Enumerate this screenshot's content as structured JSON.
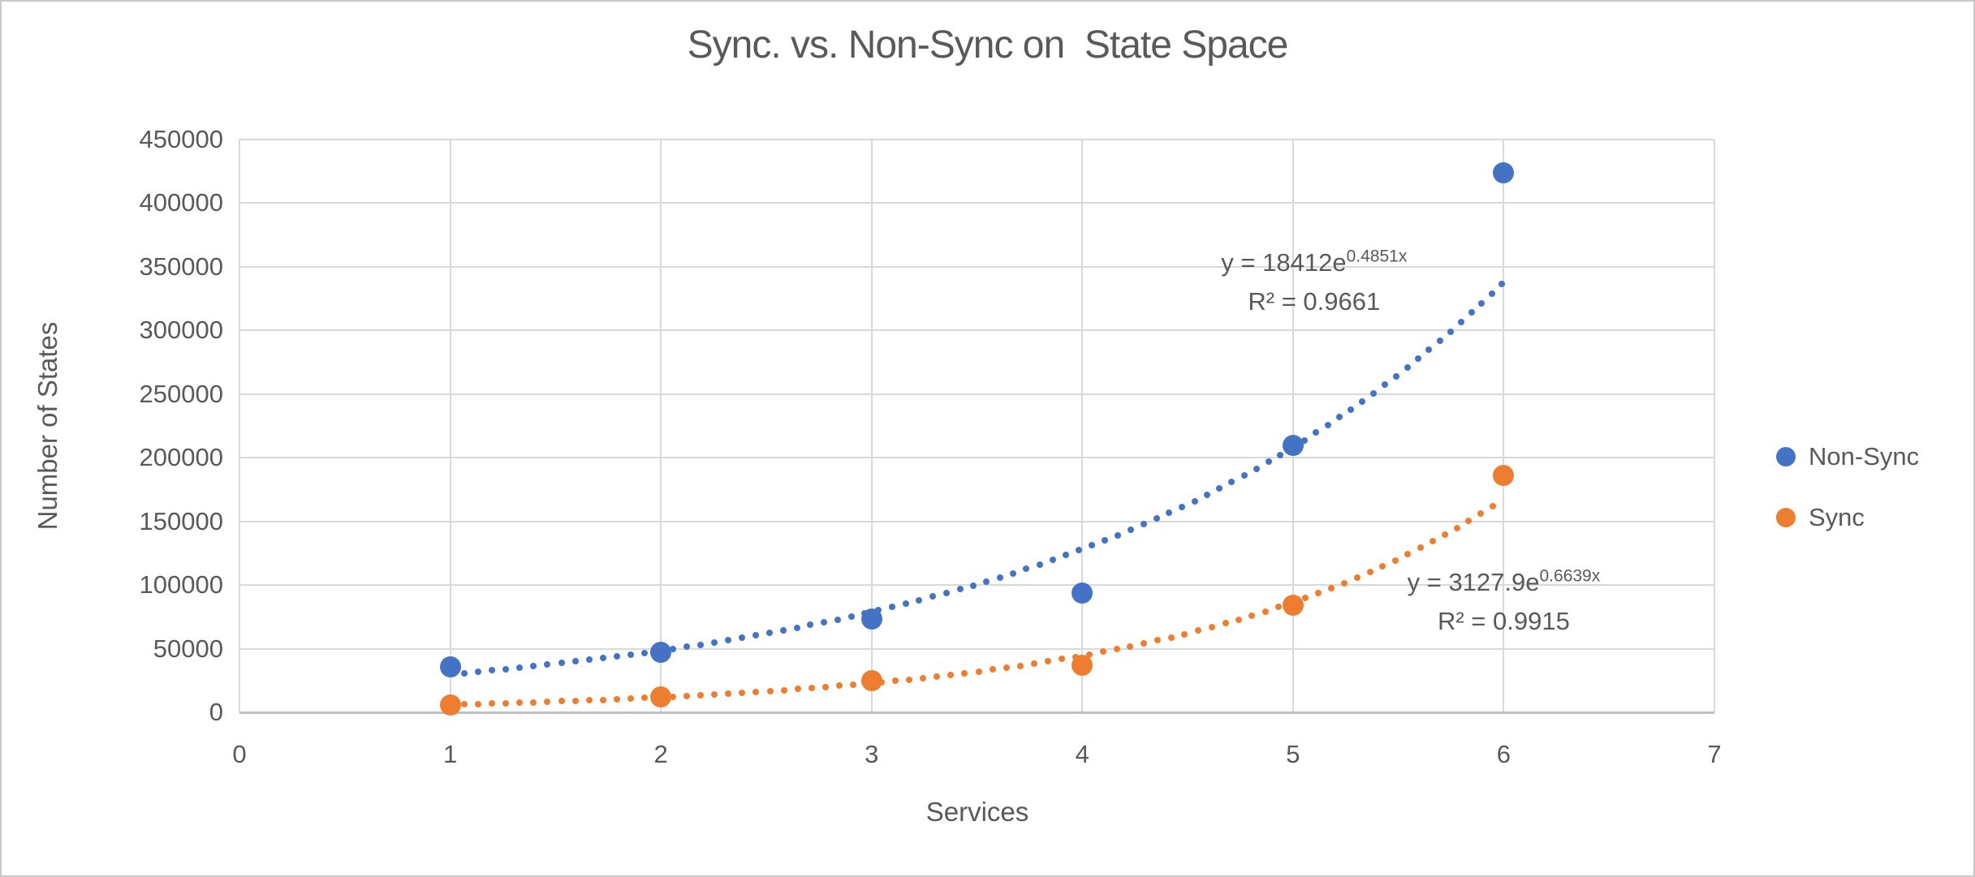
{
  "window": {
    "background": "#ffffff",
    "border_color": "#c9c9c9"
  },
  "chart_data": {
    "type": "scatter",
    "title": "Sync. vs. Non-Sync on  State Space",
    "xlabel": "Services",
    "ylabel": "Number of States",
    "xlim": [
      0,
      7
    ],
    "ylim": [
      0,
      450000
    ],
    "x_ticks": [
      0,
      1,
      2,
      3,
      4,
      5,
      6,
      7
    ],
    "y_ticks": [
      0,
      50000,
      100000,
      150000,
      200000,
      250000,
      300000,
      350000,
      400000,
      450000
    ],
    "grid": true,
    "legend_position": "right",
    "colors": {
      "grid": "#d9d9d9",
      "axis_line": "#bfbfbf",
      "text": "#595959"
    },
    "series": [
      {
        "name": "Non-Sync",
        "color": "#4472c4",
        "x": [
          1,
          2,
          3,
          4,
          5,
          6
        ],
        "y": [
          36000,
          47000,
          73000,
          94000,
          210000,
          424000
        ],
        "trendline": {
          "type": "exponential",
          "a": 18412,
          "b": 0.4851,
          "x_start": 1,
          "x_end": 6,
          "style": "dotted"
        },
        "equation": {
          "base": "y = 18412e",
          "exponent": "0.4851x",
          "r2": "R² = 0.9661",
          "anchor_x": 5.1,
          "anchor_y": 353000
        }
      },
      {
        "name": "Sync",
        "color": "#ed7d31",
        "x": [
          1,
          2,
          3,
          4,
          5,
          6
        ],
        "y": [
          6000,
          12000,
          25000,
          37000,
          84000,
          186000
        ],
        "trendline": {
          "type": "exponential",
          "a": 3127.9,
          "b": 0.6639,
          "x_start": 1,
          "x_end": 6,
          "style": "dotted"
        },
        "equation": {
          "base": "y = 3127.9e",
          "exponent": "0.6639x",
          "r2": "R² = 0.9915",
          "anchor_x": 6.0,
          "anchor_y": 102000
        }
      }
    ]
  }
}
